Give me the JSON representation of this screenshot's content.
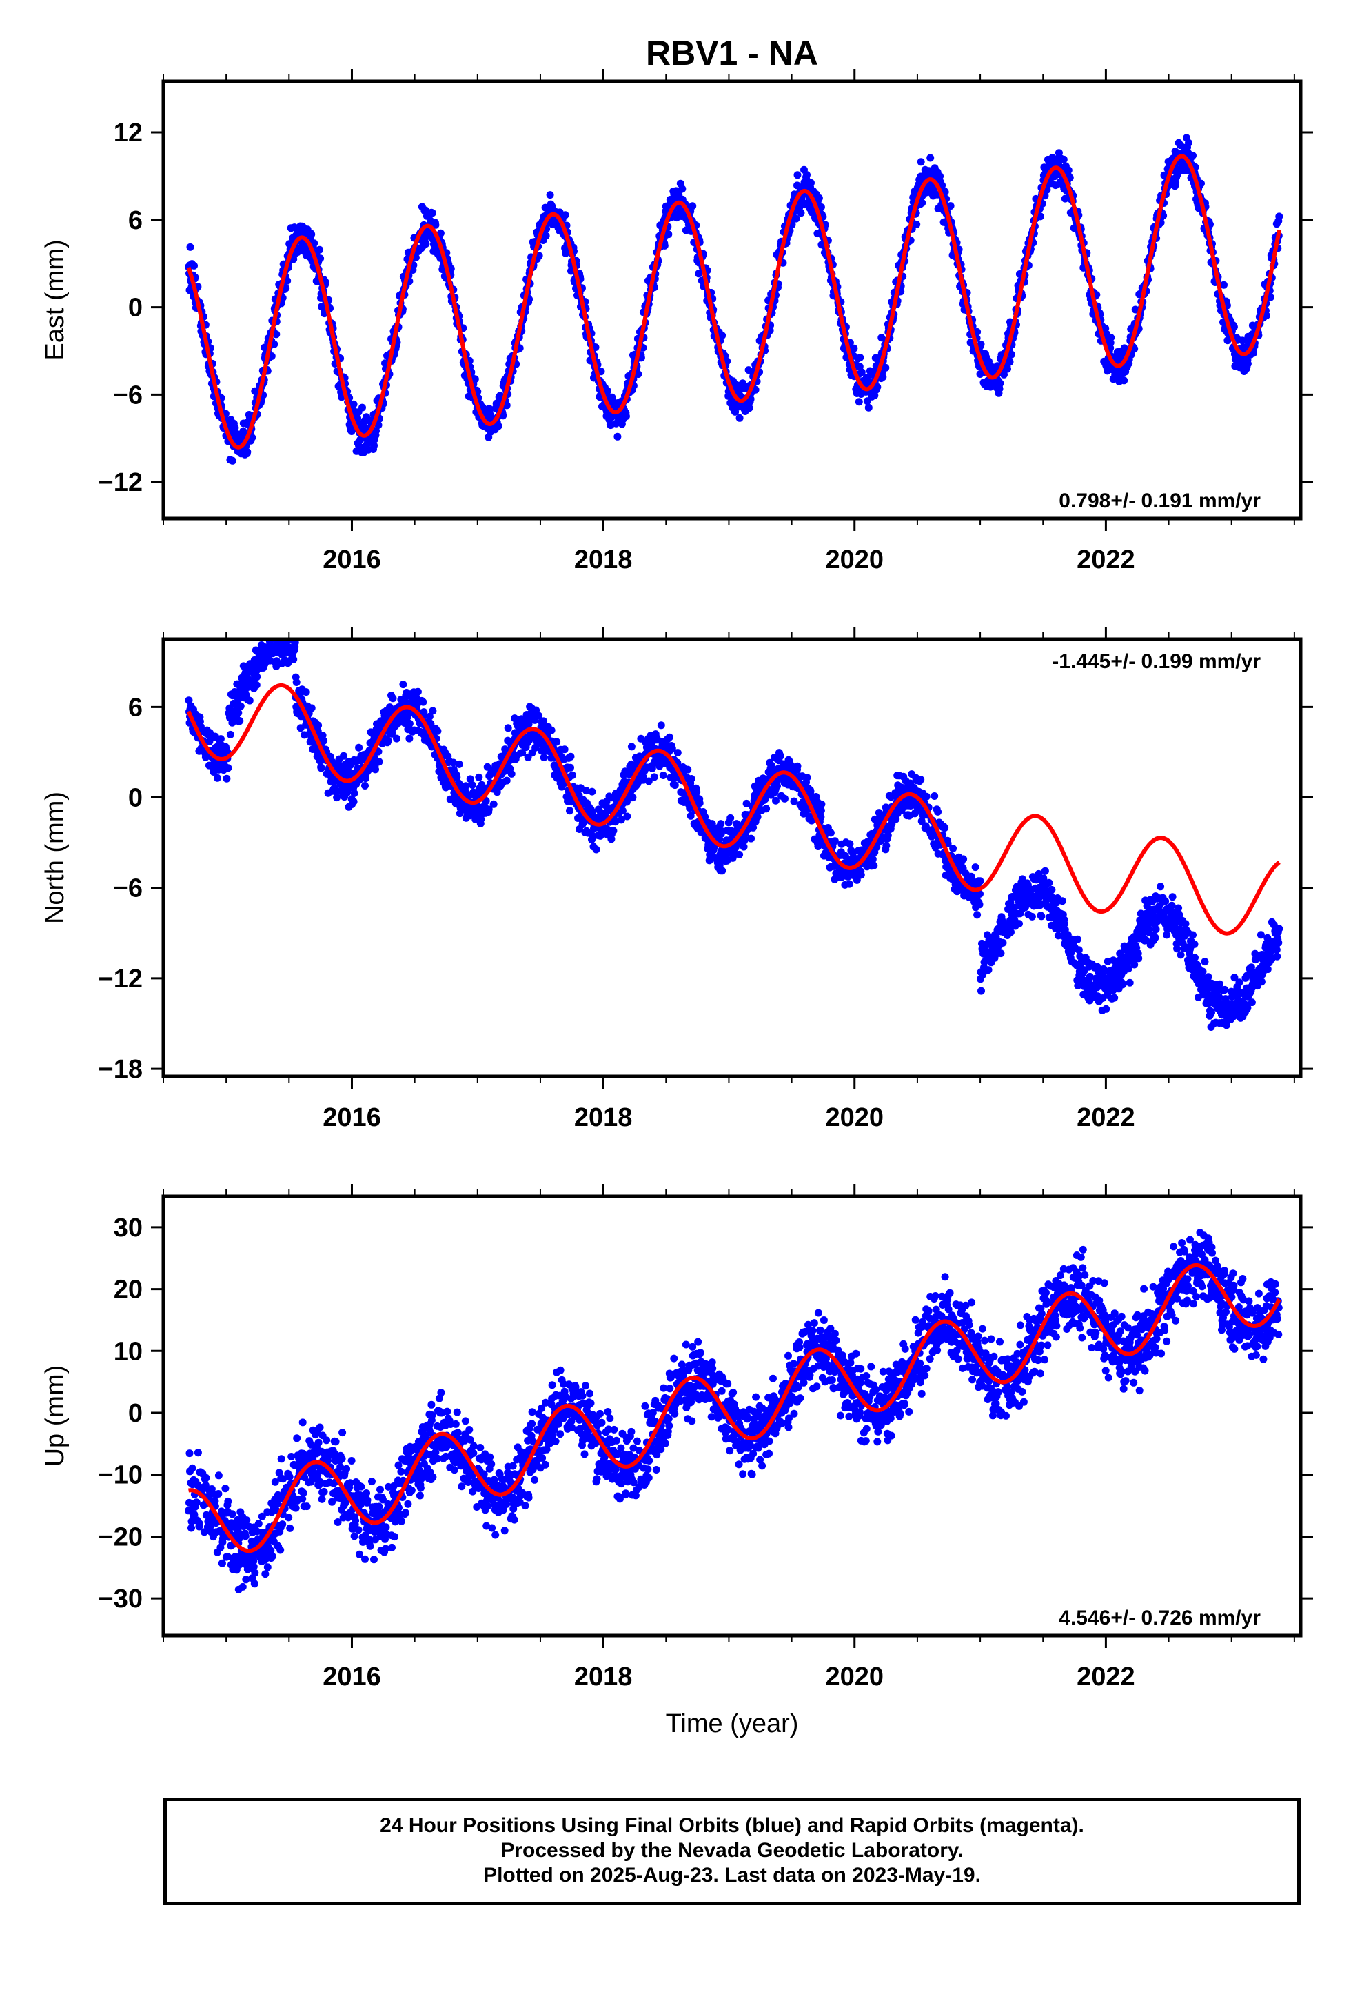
{
  "chart_data": [
    {
      "type": "scatter",
      "title": "RBV1 - NA",
      "ylabel": "East (mm)",
      "xlabel": "",
      "xlim": [
        2014.5,
        2023.55
      ],
      "ylim": [
        -14.5,
        15.5
      ],
      "x_ticks": [
        2016,
        2018,
        2020,
        2022
      ],
      "y_ticks": [
        -12,
        -6,
        0,
        6,
        12
      ],
      "rate_annotation": "0.798+/- 0.191 mm/yr",
      "rate_position": "bottom-right",
      "grid": false,
      "series": [
        {
          "kind": "points",
          "color": "#0000ff",
          "start": 2014.7,
          "end": 2023.38,
          "rate_mm_per_yr": 0.798,
          "trend_ref": 2019.0,
          "trend_at_ref": 0.5,
          "annual_amplitude": 7.0,
          "annual_peak": 0.6,
          "noise": 1.1,
          "offsets": []
        },
        {
          "kind": "model-line",
          "color": "#ff0000",
          "start": 2014.7,
          "end": 2023.38,
          "rate_mm_per_yr": 0.798,
          "trend_ref": 2019.0,
          "trend_at_ref": 0.5,
          "annual_amplitude": 7.0,
          "annual_peak": 0.6,
          "offsets": []
        }
      ]
    },
    {
      "type": "scatter",
      "title": "",
      "ylabel": "North (mm)",
      "xlabel": "",
      "xlim": [
        2014.5,
        2023.55
      ],
      "ylim": [
        -18.5,
        10.5
      ],
      "x_ticks": [
        2016,
        2018,
        2020,
        2022
      ],
      "y_ticks": [
        -18,
        -12,
        -6,
        0,
        6
      ],
      "rate_annotation": "-1.445+/- 0.199 mm/yr",
      "rate_position": "top-right",
      "grid": false,
      "series": [
        {
          "kind": "points",
          "color": "#0000ff",
          "start": 2014.7,
          "end": 2023.38,
          "rate_mm_per_yr": -1.445,
          "trend_ref": 2019.0,
          "trend_at_ref": -0.5,
          "annual_amplitude": 2.8,
          "annual_peak": 0.45,
          "noise": 1.3,
          "offsets": [
            {
              "year": 2015.02,
              "value": 3.0
            },
            {
              "year": 2015.55,
              "value": -3.0
            },
            {
              "year": 2021.0,
              "value": -5.0
            }
          ]
        },
        {
          "kind": "model-line",
          "color": "#ff0000",
          "start": 2014.7,
          "end": 2023.38,
          "rate_mm_per_yr": -1.445,
          "trend_ref": 2019.0,
          "trend_at_ref": -0.5,
          "annual_amplitude": 2.8,
          "annual_peak": 0.45,
          "offsets": []
        }
      ]
    },
    {
      "type": "scatter",
      "title": "",
      "ylabel": "Up (mm)",
      "xlabel": "Time (year)",
      "xlim": [
        2014.5,
        2023.55
      ],
      "ylim": [
        -36,
        35
      ],
      "x_ticks": [
        2016,
        2018,
        2020,
        2022
      ],
      "y_ticks": [
        -30,
        -20,
        -10,
        0,
        10,
        20,
        30
      ],
      "rate_annotation": "4.546+/- 0.726 mm/yr",
      "rate_position": "bottom-right",
      "grid": false,
      "series": [
        {
          "kind": "points",
          "color": "#0000ff",
          "start": 2014.7,
          "end": 2023.38,
          "rate_mm_per_yr": 4.546,
          "trend_ref": 2019.0,
          "trend_at_ref": 1.0,
          "annual_amplitude": 6.0,
          "annual_peak": 0.7,
          "noise": 5.0,
          "offsets": []
        },
        {
          "kind": "model-line",
          "color": "#ff0000",
          "start": 2014.7,
          "end": 2023.38,
          "rate_mm_per_yr": 4.546,
          "trend_ref": 2019.0,
          "trend_at_ref": 1.0,
          "annual_amplitude": 6.0,
          "annual_peak": 0.7,
          "offsets": []
        }
      ]
    }
  ],
  "footer": {
    "line1": "24 Hour Positions Using Final Orbits (blue) and Rapid Orbits (magenta).",
    "line2": "Processed by the Nevada Geodetic Laboratory.",
    "line3": "Plotted on 2025-Aug-23. Last data on 2023-May-19."
  }
}
